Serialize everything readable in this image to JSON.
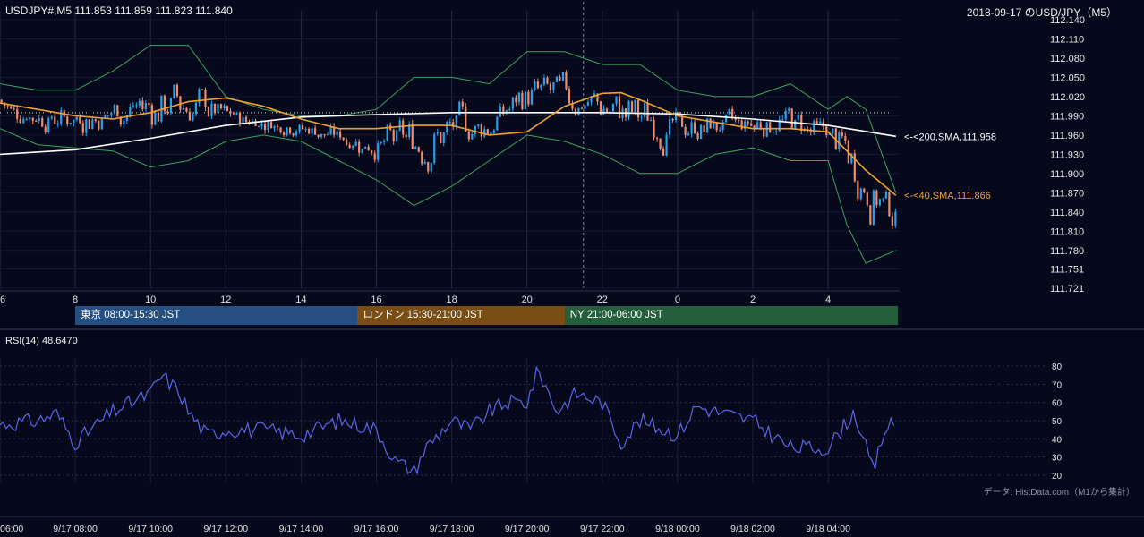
{
  "header": {
    "symbol_line": "USDJPY#,M5 111.853 111.859 111.823 111.840",
    "title": "2018-09-17 のUSD/JPY（M5）"
  },
  "sessions": [
    {
      "label": "東京 08:00-15:30 JST",
      "start": 8.0,
      "end": 15.5,
      "color": "#244f80"
    },
    {
      "label": "ロンドン 15:30-21:00 JST",
      "start": 15.5,
      "end": 21.0,
      "color": "#7a4d12"
    },
    {
      "label": "NY 21:00-06:00 JST",
      "start": 21.0,
      "end": 30.0,
      "color": "#245e3a"
    }
  ],
  "price_axis_labels": [
    "112.140",
    "112.110",
    "112.080",
    "112.050",
    "112.020",
    "111.990",
    "111.960",
    "111.930",
    "111.900",
    "111.870",
    "111.840",
    "111.810",
    "111.780",
    "111.751",
    "111.721"
  ],
  "hour_labels": [
    "6",
    "8",
    "10",
    "12",
    "14",
    "16",
    "18",
    "20",
    "22",
    "0",
    "2",
    "4"
  ],
  "rsi": {
    "label": "RSI(14) 48.6470",
    "axis_labels": [
      "80",
      "70",
      "60",
      "50",
      "40",
      "30",
      "20"
    ]
  },
  "time_labels": [
    "06:00",
    "9/17 08:00",
    "9/17 10:00",
    "9/17 12:00",
    "9/17 14:00",
    "9/17 16:00",
    "9/17 18:00",
    "9/17 20:00",
    "9/17 22:00",
    "9/18 00:00",
    "9/18 02:00",
    "9/18 04:00"
  ],
  "source": "データ: HistData.com（M1から集計）",
  "colors": {
    "up": "#2aa0ea",
    "down": "#f08c6c",
    "sma40": "#f0a030",
    "sma200": "#ffffff",
    "bb": "#3aa55a",
    "rsi": "#5a64e6"
  },
  "chart_data": [
    {
      "type": "candlestick",
      "title": "2018-09-17 のUSD/JPY（M5）",
      "ylim": [
        111.721,
        112.14
      ],
      "x_range_hours": [
        6,
        29.9
      ],
      "reference_line": 111.995,
      "overlays": [
        {
          "label": "<-<200,SMA,111.958",
          "name": "200,SMA",
          "last": 111.958,
          "points": [
            [
              6,
              111.93
            ],
            [
              8,
              111.937
            ],
            [
              10,
              111.955
            ],
            [
              12,
              111.975
            ],
            [
              14,
              111.988
            ],
            [
              16,
              111.992
            ],
            [
              18,
              111.995
            ],
            [
              20,
              111.995
            ],
            [
              22,
              111.995
            ],
            [
              24,
              111.993
            ],
            [
              26,
              111.985
            ],
            [
              28,
              111.975
            ],
            [
              29.8,
              111.958
            ]
          ]
        },
        {
          "label": "<-<40,SMA,111.866",
          "name": "40,SMA",
          "last": 111.866,
          "points": [
            [
              6,
              112.01
            ],
            [
              7,
              112.0
            ],
            [
              8,
              111.99
            ],
            [
              9,
              111.985
            ],
            [
              10,
              111.995
            ],
            [
              11,
              112.012
            ],
            [
              12,
              112.018
            ],
            [
              13,
              112.005
            ],
            [
              14,
              111.985
            ],
            [
              15,
              111.97
            ],
            [
              16,
              111.97
            ],
            [
              17,
              111.975
            ],
            [
              18,
              111.975
            ],
            [
              19,
              111.96
            ],
            [
              20,
              111.965
            ],
            [
              21,
              112.005
            ],
            [
              22,
              112.025
            ],
            [
              22.5,
              112.026
            ],
            [
              23,
              112.015
            ],
            [
              24,
              111.99
            ],
            [
              25,
              111.98
            ],
            [
              26,
              111.97
            ],
            [
              27,
              111.97
            ],
            [
              28,
              111.965
            ],
            [
              29,
              111.905
            ],
            [
              29.8,
              111.866
            ]
          ]
        }
      ],
      "bollinger": {
        "upper": [
          [
            6,
            112.04
          ],
          [
            7,
            112.03
          ],
          [
            8,
            112.03
          ],
          [
            9,
            112.06
          ],
          [
            10,
            112.1
          ],
          [
            11,
            112.1
          ],
          [
            12,
            112.02
          ],
          [
            13,
            112.0
          ],
          [
            14,
            111.99
          ],
          [
            15,
            111.99
          ],
          [
            16,
            112.0
          ],
          [
            17,
            112.05
          ],
          [
            18,
            112.05
          ],
          [
            19,
            112.04
          ],
          [
            20,
            112.09
          ],
          [
            21,
            112.09
          ],
          [
            22,
            112.07
          ],
          [
            23,
            112.07
          ],
          [
            24,
            112.03
          ],
          [
            25,
            112.02
          ],
          [
            26,
            112.02
          ],
          [
            27,
            112.04
          ],
          [
            28,
            112.0
          ],
          [
            28.5,
            112.02
          ],
          [
            29,
            112.0
          ],
          [
            29.8,
            111.87
          ]
        ],
        "lower": [
          [
            6,
            111.97
          ],
          [
            7,
            111.945
          ],
          [
            8,
            111.94
          ],
          [
            9,
            111.935
          ],
          [
            10,
            111.91
          ],
          [
            11,
            111.92
          ],
          [
            12,
            111.95
          ],
          [
            13,
            111.96
          ],
          [
            14,
            111.95
          ],
          [
            15,
            111.92
          ],
          [
            16,
            111.89
          ],
          [
            17,
            111.85
          ],
          [
            18,
            111.88
          ],
          [
            19,
            111.92
          ],
          [
            20,
            111.96
          ],
          [
            21,
            111.95
          ],
          [
            22,
            111.93
          ],
          [
            23,
            111.9
          ],
          [
            24,
            111.9
          ],
          [
            25,
            111.93
          ],
          [
            26,
            111.94
          ],
          [
            27,
            111.92
          ],
          [
            28,
            111.92
          ],
          [
            28.5,
            111.82
          ],
          [
            29,
            111.76
          ],
          [
            29.8,
            111.78
          ]
        ]
      }
    },
    {
      "type": "line",
      "name": "RSI(14)",
      "ylim": [
        20,
        80
      ],
      "x_range_hours": [
        6,
        29.9
      ],
      "points": [
        [
          6,
          48
        ],
        [
          7,
          50
        ],
        [
          7.5,
          54
        ],
        [
          8,
          38
        ],
        [
          9,
          55
        ],
        [
          10,
          65
        ],
        [
          10.3,
          75
        ],
        [
          10.8,
          65
        ],
        [
          11,
          55
        ],
        [
          11.5,
          42
        ],
        [
          12,
          45
        ],
        [
          13,
          45
        ],
        [
          14,
          42
        ],
        [
          15,
          50
        ],
        [
          15.5,
          48
        ],
        [
          16,
          45
        ],
        [
          16.5,
          28
        ],
        [
          17,
          22
        ],
        [
          17.3,
          35
        ],
        [
          18,
          50
        ],
        [
          18.5,
          45
        ],
        [
          19,
          55
        ],
        [
          19.5,
          60
        ],
        [
          20,
          60
        ],
        [
          20.3,
          78
        ],
        [
          20.8,
          55
        ],
        [
          21.3,
          65
        ],
        [
          22,
          60
        ],
        [
          22.5,
          38
        ],
        [
          23,
          50
        ],
        [
          24,
          42
        ],
        [
          24.5,
          58
        ],
        [
          25,
          55
        ],
        [
          26,
          50
        ],
        [
          27,
          35
        ],
        [
          28,
          35
        ],
        [
          28.7,
          55
        ],
        [
          29,
          35
        ],
        [
          29.2,
          22
        ],
        [
          29.5,
          45
        ],
        [
          29.8,
          49
        ]
      ]
    }
  ]
}
